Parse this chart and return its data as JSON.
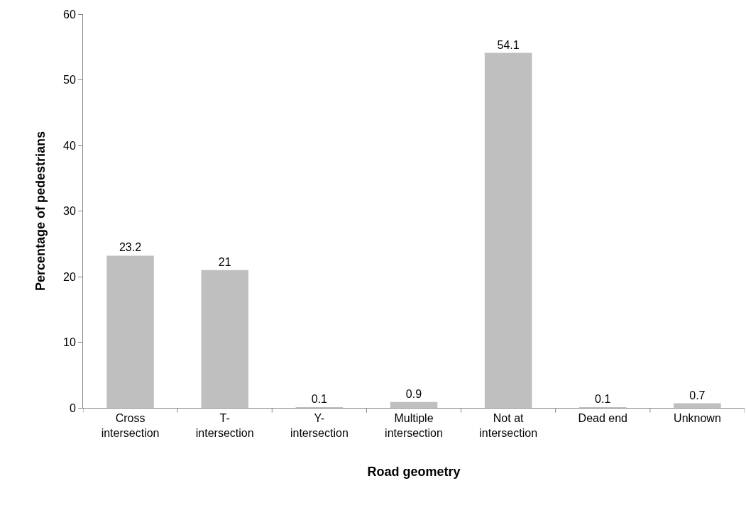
{
  "chart_data": {
    "type": "bar",
    "xlabel": "Road geometry",
    "ylabel": "Percentage of pedestrians",
    "categories": [
      "Cross intersection",
      "T-intersection",
      "Y-intersection",
      "Multiple intersection",
      "Not at intersection",
      "Dead end",
      "Unknown"
    ],
    "values": [
      23.2,
      21,
      0.1,
      0.9,
      54.1,
      0.1,
      0.7
    ],
    "color": "#bfbfbf",
    "ylim": [
      0,
      60
    ],
    "yticks": [
      0,
      10,
      20,
      30,
      40,
      50,
      60
    ],
    "grid": false,
    "legend": false,
    "data_labels": true
  }
}
